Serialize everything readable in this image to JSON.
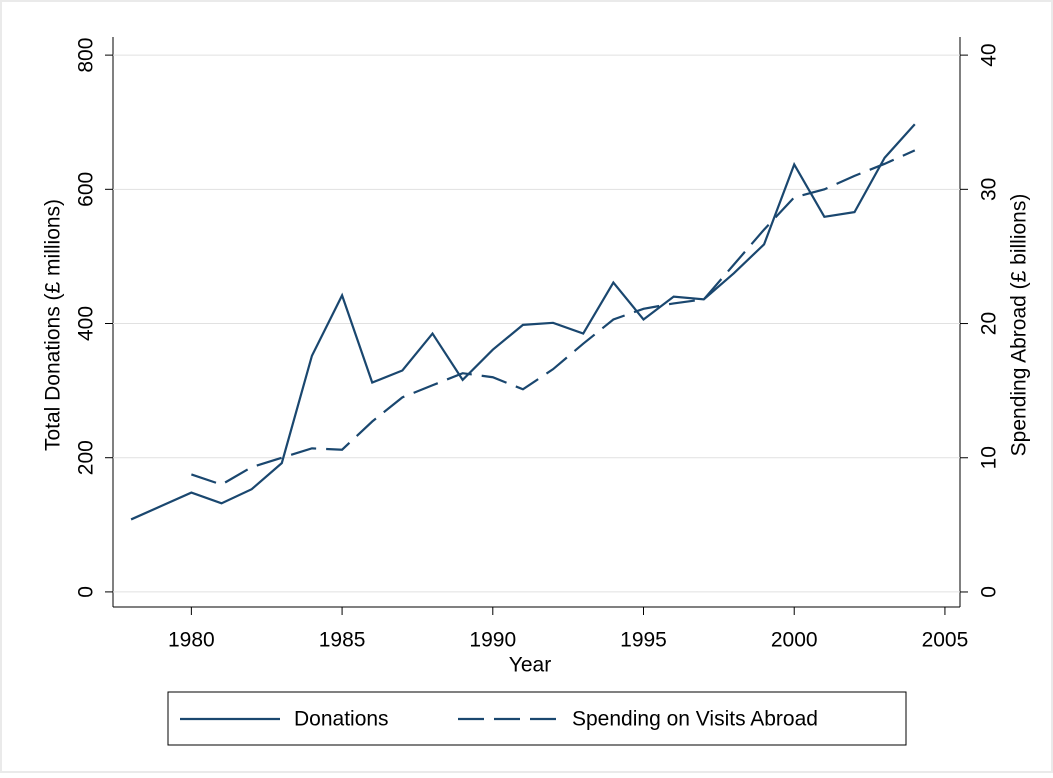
{
  "chart_data": {
    "type": "line",
    "x": [
      1978,
      1979,
      1980,
      1981,
      1982,
      1983,
      1984,
      1985,
      1986,
      1987,
      1988,
      1989,
      1990,
      1991,
      1992,
      1993,
      1994,
      1995,
      1996,
      1997,
      1998,
      1999,
      2000,
      2001,
      2002,
      2003,
      2004
    ],
    "xlabel": "Year",
    "ylabel": "Total Donations (£ millions)",
    "y2label": "Spending Abroad (£ billions)",
    "series": [
      {
        "name": "Donations",
        "color": "#1a476f",
        "dash": "solid",
        "values": [
          108,
          128,
          148,
          132,
          153,
          192,
          352,
          442,
          312,
          330,
          385,
          316,
          361,
          398,
          401,
          385,
          461,
          406,
          440,
          436,
          475,
          518,
          637,
          559,
          566,
          647,
          697
        ]
      },
      {
        "name": "Spending on Visits Abroad",
        "color": "#1a476f",
        "dash": "dashed",
        "axis": "y2",
        "values": [
          null,
          null,
          8.76,
          8.0,
          9.3,
          10.0,
          10.7,
          10.6,
          12.7,
          14.5,
          15.4,
          16.3,
          16.0,
          15.1,
          16.6,
          18.5,
          20.3,
          21.1,
          21.5,
          21.8,
          24.4,
          27.0,
          29.4,
          30.0,
          31.0,
          31.9,
          32.9
        ]
      }
    ],
    "xlim": [
      1977.4,
      2005.5
    ],
    "xticks": [
      1980,
      1985,
      1990,
      1995,
      2000,
      2005
    ],
    "ylim": [
      -22.5,
      827
    ],
    "yticks": [
      0,
      200,
      400,
      600,
      800
    ],
    "y2lim": [
      -1.12,
      41.35
    ],
    "y2ticks": [
      0,
      10,
      20,
      30,
      40
    ],
    "grid": true,
    "legend": "bottom"
  }
}
